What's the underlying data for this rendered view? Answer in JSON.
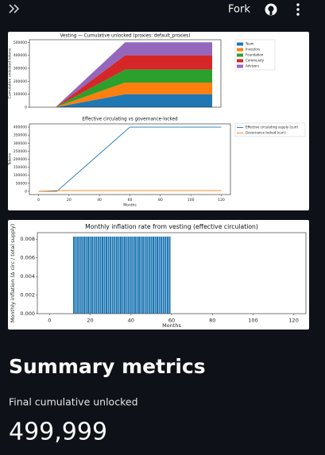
{
  "header": {
    "fork": "Fork"
  },
  "chart_data": [
    {
      "type": "area",
      "stacked": true,
      "title": "Vesting — Cumulative unlocked (proxies: default_proxies)",
      "y_label": "Cumulative unlocked tokens",
      "x": [
        0,
        12,
        60,
        120
      ],
      "xlim": [
        -6,
        126
      ],
      "ylim": [
        0,
        520000
      ],
      "yticks": [
        0,
        100000,
        200000,
        300000,
        400000,
        500000
      ],
      "legend": "upper right",
      "series": [
        {
          "name": "Team",
          "color": "#1f77b4",
          "values": [
            0,
            0,
            100000,
            100000
          ]
        },
        {
          "name": "Investors",
          "color": "#ff7f0e",
          "values": [
            0,
            0,
            90000,
            90000
          ]
        },
        {
          "name": "Foundation",
          "color": "#2ca02c",
          "values": [
            0,
            0,
            100000,
            100000
          ]
        },
        {
          "name": "Community",
          "color": "#d62728",
          "values": [
            0,
            0,
            110000,
            110000
          ]
        },
        {
          "name": "Advisors",
          "color": "#9467bd",
          "values": [
            0,
            0,
            99999,
            99999
          ]
        }
      ]
    },
    {
      "type": "line",
      "title": "Effective circulating vs governance-locked",
      "y_label": "Tokens",
      "x_label": "Months",
      "x": [
        0,
        12,
        60,
        120
      ],
      "xlim": [
        -6,
        126
      ],
      "ylim": [
        -20000,
        420000
      ],
      "xticks": [
        0,
        20,
        40,
        60,
        80,
        100,
        120
      ],
      "yticks": [
        0,
        50000,
        100000,
        150000,
        200000,
        250000,
        300000,
        350000,
        400000
      ],
      "legend": "upper right",
      "series": [
        {
          "name": "Effective circulating supply (curr)",
          "color": "#1f77b4",
          "values": [
            0,
            0,
            400000,
            400000
          ]
        },
        {
          "name": "Governance locked (curr)",
          "color": "#ff7f0e",
          "values": [
            0,
            5000,
            5000,
            5000
          ]
        }
      ]
    },
    {
      "type": "bar",
      "title": "Monthly inflation rate from vesting (effective circulation)",
      "y_label": "Monthly inflation (Δ circ / total supply)",
      "x_label": "Months",
      "color": "#1f77b4",
      "x": [
        12,
        13,
        14,
        15,
        16,
        17,
        18,
        19,
        20,
        21,
        22,
        23,
        24,
        25,
        26,
        27,
        28,
        29,
        30,
        31,
        32,
        33,
        34,
        35,
        36,
        37,
        38,
        39,
        40,
        41,
        42,
        43,
        44,
        45,
        46,
        47,
        48,
        49,
        50,
        51,
        52,
        53,
        54,
        55,
        56,
        57,
        58,
        59
      ],
      "values": [
        0.0083,
        0.0083,
        0.0083,
        0.0083,
        0.0083,
        0.0083,
        0.0083,
        0.0083,
        0.0083,
        0.0083,
        0.0083,
        0.0083,
        0.0083,
        0.0083,
        0.0083,
        0.0083,
        0.0083,
        0.0083,
        0.0083,
        0.0083,
        0.0083,
        0.0083,
        0.0083,
        0.0083,
        0.0083,
        0.0083,
        0.0083,
        0.0083,
        0.0083,
        0.0083,
        0.0083,
        0.0083,
        0.0083,
        0.0083,
        0.0083,
        0.0083,
        0.0083,
        0.0083,
        0.0083,
        0.0083,
        0.0083,
        0.0083,
        0.0083,
        0.0083,
        0.0083,
        0.0083,
        0.0083,
        0.0083
      ],
      "xlim": [
        -6,
        126
      ],
      "ylim": [
        0,
        0.0087
      ],
      "xticks": [
        0,
        20,
        40,
        60,
        80,
        100,
        120
      ],
      "yticks": [
        {
          "value": 0,
          "label": "0.000"
        },
        0.002,
        0.004,
        0.006,
        0.008
      ]
    }
  ],
  "summary": {
    "title": "Summary metrics",
    "metric_label": "Final cumulative unlocked",
    "metric_value": "499,999"
  }
}
